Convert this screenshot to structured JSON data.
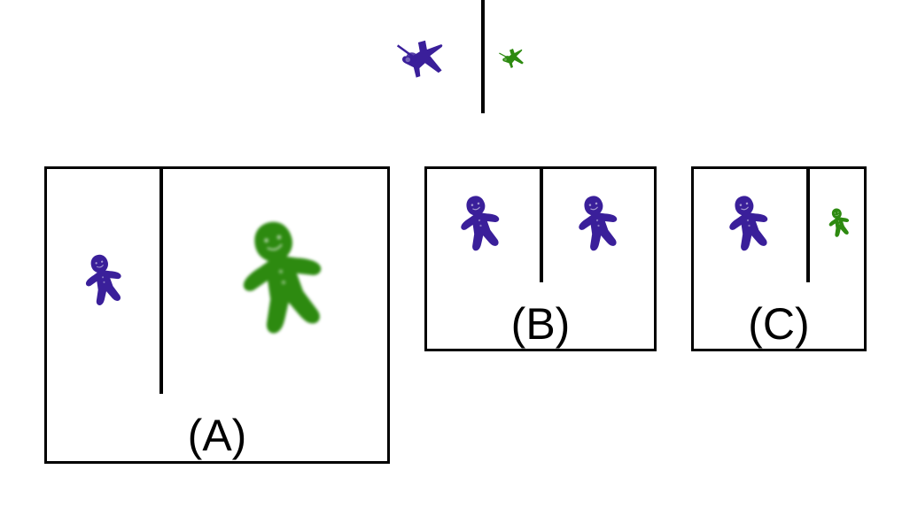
{
  "colors": {
    "purple": "#3a1f9a",
    "green": "#2d8a10",
    "line": "#000000"
  },
  "top_reference": {
    "left_item": "purple-airplane",
    "right_item": "green-airplane"
  },
  "options": [
    {
      "label": "(A)",
      "left_item": "purple-gingerbread-man",
      "right_item": "green-gingerbread-man"
    },
    {
      "label": "(B)",
      "left_item": "purple-gingerbread-man",
      "right_item": "purple-gingerbread-man"
    },
    {
      "label": "(C)",
      "left_item": "purple-gingerbread-man",
      "right_item": "green-gingerbread-man"
    }
  ]
}
